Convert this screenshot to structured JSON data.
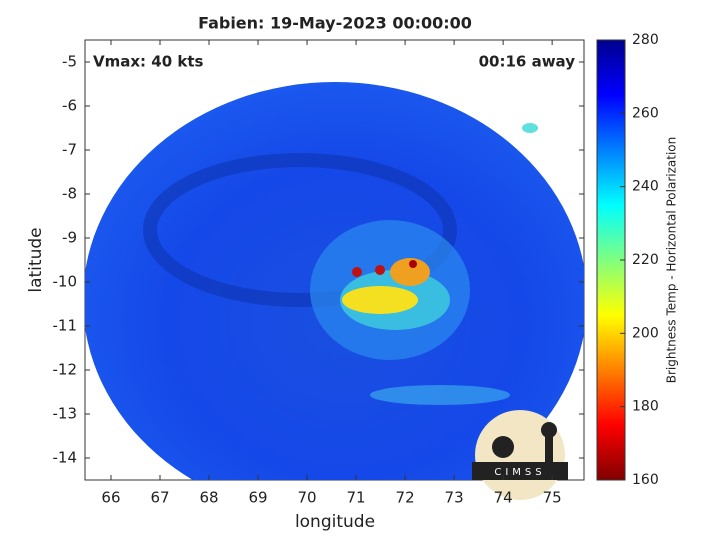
{
  "chart_data": {
    "type": "image",
    "title": "Fabien: 19-May-2023 00:00:00",
    "xlabel": "longitude",
    "ylabel": "latitude",
    "annotations": [
      "Vmax: 40 kts",
      "00:16 away"
    ],
    "logo": "CIMSS",
    "xlim": [
      65.47,
      75.65
    ],
    "xticks": [
      66,
      67,
      68,
      69,
      70,
      71,
      72,
      73,
      74,
      75
    ],
    "ylim": [
      -14.5,
      -4.5
    ],
    "yticks": [
      -5,
      -6,
      -7,
      -8,
      -9,
      -10,
      -11,
      -12,
      -13,
      -14
    ],
    "colorbar": {
      "label": "Brightness Temp - Horizontal Polarization",
      "colormap": "jet",
      "lim": [
        160,
        280
      ],
      "ticks": [
        160,
        180,
        200,
        220,
        240,
        260,
        280
      ]
    }
  }
}
